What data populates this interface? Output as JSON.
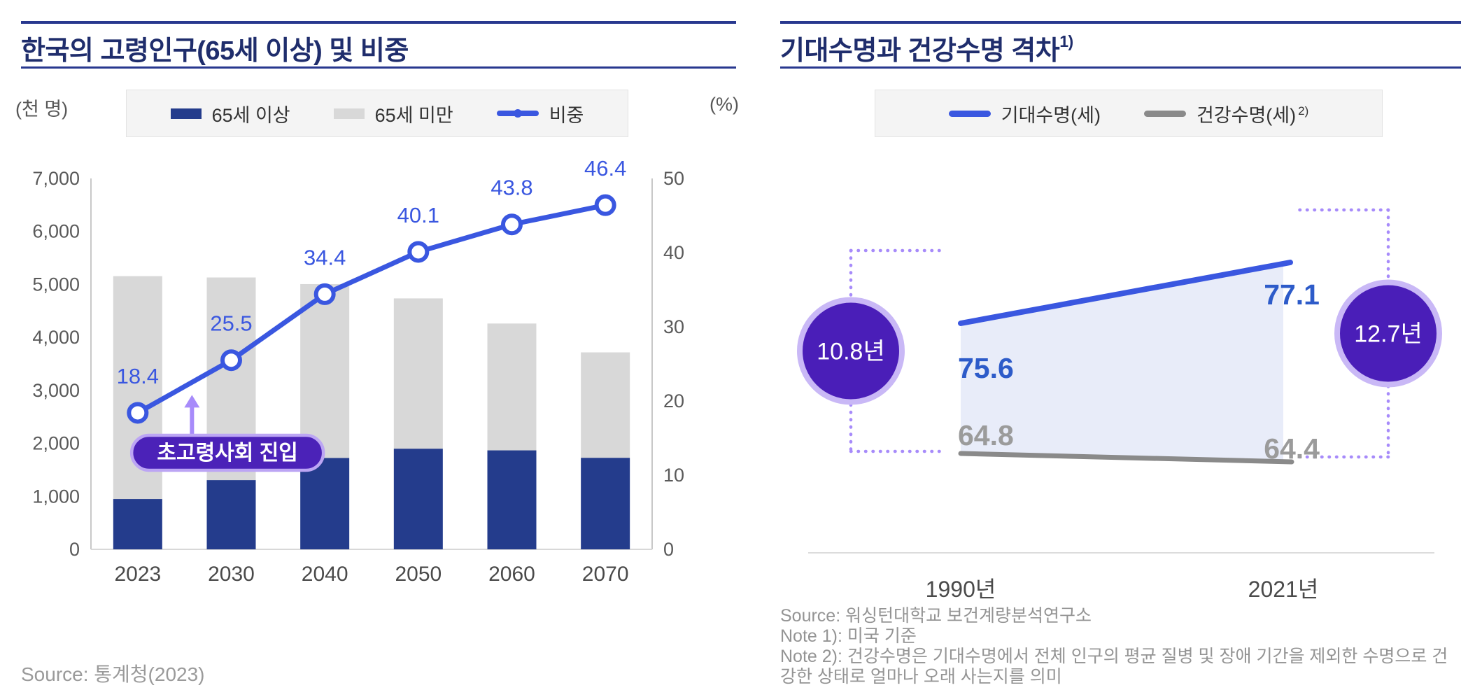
{
  "left_panel": {
    "title": "한국의 고령인구(65세 이상) 및 비중",
    "unit_left": "(천 명)",
    "unit_right": "(%)",
    "legend": [
      {
        "label": "65세 이상",
        "swatch": "box",
        "color": "#243C8C"
      },
      {
        "label": "65세 미만",
        "swatch": "box",
        "color": "#D8D8D8"
      },
      {
        "label": "비중",
        "swatch": "line-marker",
        "color": "#3A57E0"
      }
    ],
    "source": "Source: 통계청(2023)",
    "chart_data": {
      "type": "bar",
      "subtype": "stacked-bars-with-percent-line",
      "categories": [
        "2023",
        "2030",
        "2040",
        "2050",
        "2060",
        "2070"
      ],
      "series": [
        {
          "name": "65세 이상",
          "type": "bar",
          "stack": true,
          "values": [
            950,
            1306,
            1724,
            1899,
            1868,
            1727
          ],
          "color": "#243C8C"
        },
        {
          "name": "65세 미만",
          "type": "bar",
          "stack": true,
          "values": [
            4206,
            3825,
            3282,
            2837,
            2394,
            1991
          ],
          "color": "#D8D8D8"
        },
        {
          "name": "비중",
          "type": "line",
          "axis": "right",
          "values": [
            18.4,
            25.5,
            34.4,
            40.1,
            43.8,
            46.4
          ],
          "color": "#3A57E0"
        }
      ],
      "left_axis": {
        "label": "(천 명)",
        "min": 0,
        "max": 7000,
        "step": 1000
      },
      "right_axis": {
        "label": "(%)",
        "min": 0,
        "max": 50,
        "step": 10
      },
      "grid": false,
      "legend_position": "top",
      "annotation": {
        "text": "초고령사회 진입",
        "fill": "#4B22B8",
        "border": "#BCA5F4",
        "arrow_color": "#A78BFA",
        "points_between": [
          "2023",
          "2030"
        ]
      }
    }
  },
  "right_panel": {
    "title": "기대수명과 건강수명 격차",
    "title_superscript": "1)",
    "legend": [
      {
        "label": "기대수명(세)",
        "superscript": "",
        "swatch": "line",
        "color": "#3A57E0"
      },
      {
        "label": "건강수명(세)",
        "superscript": "2)",
        "swatch": "line",
        "color": "#8A8A8A"
      }
    ],
    "source": "Source: 워싱턴대학교 보건계량분석연구소",
    "notes": [
      "Note 1): 미국 기준",
      "Note 2): 건강수명은 기대수명에서 전체 인구의 평균 질병 및 장애 기간을 제외한 수명으로 건강한 상태로 얼마나 오래 사는지를 의미"
    ],
    "chart_data": {
      "type": "line",
      "subtype": "gap-area-diagram",
      "categories": [
        "1990년",
        "2021년"
      ],
      "series": [
        {
          "name": "기대수명(세)",
          "values": [
            75.6,
            77.1
          ],
          "color": "#3A57E0",
          "label_color": "#2D5BC9"
        },
        {
          "name": "건강수명(세)",
          "values": [
            64.8,
            64.4
          ],
          "color": "#8A8A8A",
          "label_color": "#9B9B9B"
        }
      ],
      "gaps": [
        {
          "category": "1990년",
          "label": "10.8년"
        },
        {
          "category": "2021년",
          "label": "12.7년"
        }
      ],
      "area_fill": "#E8ECF9",
      "accent": {
        "circle_fill": "#4A1EB8",
        "circle_border": "#C9B8F6",
        "dotted": "#A78BFA"
      },
      "legend_position": "top",
      "grid": false
    }
  }
}
